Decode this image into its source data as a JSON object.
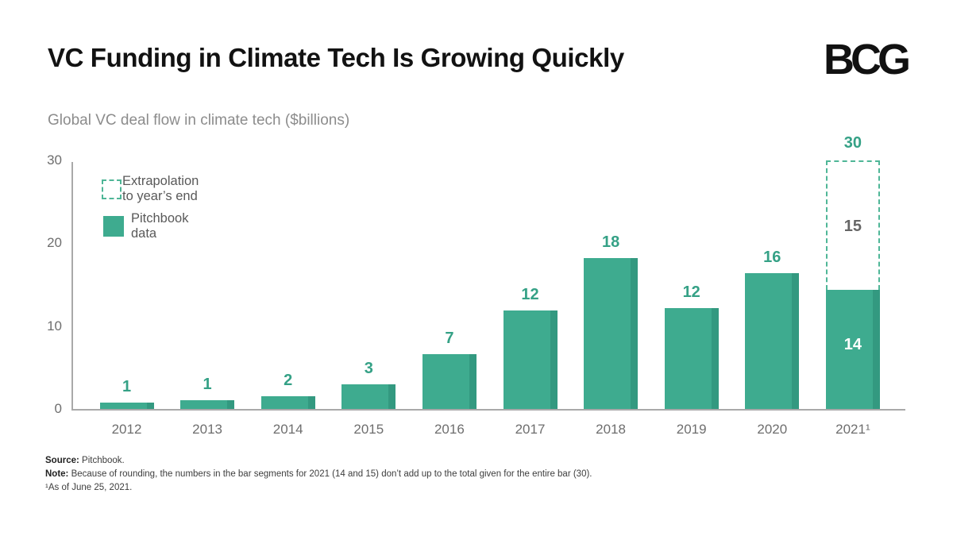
{
  "header": {
    "title": "VC Funding in Climate Tech Is Growing Quickly",
    "logo_text": "BCG"
  },
  "chart_data": {
    "type": "bar",
    "title": "Global VC deal flow in climate tech ($billions)",
    "unit": "$billions",
    "ylim": [
      0,
      30
    ],
    "yticks": [
      0,
      10,
      20,
      30
    ],
    "grid": false,
    "legend": [
      {
        "id": "extrapolation",
        "label": "Extrapolation to year’s end",
        "style": "dashed-outline"
      },
      {
        "id": "pitchbook",
        "label": "Pitchbook data",
        "style": "solid"
      }
    ],
    "categories": [
      "2012",
      "2013",
      "2014",
      "2015",
      "2016",
      "2017",
      "2018",
      "2019",
      "2020",
      "2021¹"
    ],
    "series": [
      {
        "name": "Pitchbook data",
        "values": [
          1,
          1,
          2,
          3,
          7,
          12,
          18,
          12,
          16,
          14
        ]
      },
      {
        "name": "Extrapolation to year’s end",
        "values": [
          null,
          null,
          null,
          null,
          null,
          null,
          null,
          null,
          null,
          15
        ]
      }
    ],
    "totals": [
      null,
      null,
      null,
      null,
      null,
      null,
      null,
      null,
      null,
      30
    ],
    "bars": [
      {
        "category": "2012",
        "value_label": "1",
        "display_height": 0.75
      },
      {
        "category": "2013",
        "value_label": "1",
        "display_height": 1.1
      },
      {
        "category": "2014",
        "value_label": "2",
        "display_height": 1.5
      },
      {
        "category": "2015",
        "value_label": "3",
        "display_height": 3.0
      },
      {
        "category": "2016",
        "value_label": "7",
        "display_height": 6.6
      },
      {
        "category": "2017",
        "value_label": "12",
        "display_height": 11.9
      },
      {
        "category": "2018",
        "value_label": "18",
        "display_height": 18.2
      },
      {
        "category": "2019",
        "value_label": "12",
        "display_height": 12.2
      },
      {
        "category": "2020",
        "value_label": "16",
        "display_height": 16.4
      },
      {
        "category": "2021¹",
        "value_label": "14",
        "display_height": 14.4,
        "value_label_inside": true,
        "extrapolation": {
          "value_label": "15",
          "display_top": 30,
          "total_label": "30"
        }
      }
    ]
  },
  "footnotes": {
    "source_prefix": "Source:",
    "source_text": " Pitchbook.",
    "note_prefix": "Note:",
    "note_text": " Because of rounding, the numbers in the bar segments for 2021 (14 and 15) don’t add up to the total given for the entire bar (30).",
    "footnote1": "¹As of June 25, 2021."
  },
  "colors": {
    "bar": "#3EAB8F",
    "bar_edge": "#339980",
    "value_label": "#35A186",
    "dashed_border": "#4FB697",
    "axis_line": "#A9A9A9",
    "tick_text": "#6E6E6E",
    "legend_text": "#595959",
    "subtitle_text": "#8C8C8C",
    "segment_label_gray": "#666666",
    "segment_label_white": "#FFFFFF"
  }
}
